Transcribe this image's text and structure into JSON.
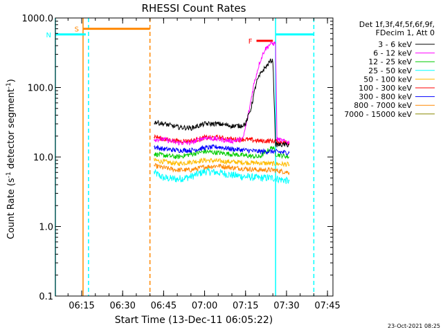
{
  "chart_data": {
    "type": "line",
    "title": "RHESSI Count Rates",
    "xlabel": "Start Time (13-Dec-11 06:05:22)",
    "ylabel_main": "Count Rate (s",
    "ylabel_sup1": "-1",
    "ylabel_mid": " detector segment",
    "ylabel_sup2": "-1",
    "ylabel_end": ")",
    "y_scale": "log",
    "ylim": [
      0.1,
      1000
    ],
    "xlim": [
      "06:05:22",
      "07:47:00"
    ],
    "x_ticks": [
      "06:15",
      "06:30",
      "06:45",
      "07:00",
      "07:15",
      "07:30",
      "07:45"
    ],
    "y_ticks": [
      "0.1",
      "1.0",
      "10.0",
      "100.0",
      "1000.0"
    ],
    "legend_header": [
      "Det 1f,3f,4f,5f,6f,9f,",
      "FDecim 1, Att 0"
    ],
    "legend_position": "right",
    "series": [
      {
        "name": "3 - 6 keV",
        "color": "#000000",
        "points": [
          [
            "06:41:30",
            32
          ],
          [
            "06:45",
            30
          ],
          [
            "06:50",
            27
          ],
          [
            "06:55",
            26
          ],
          [
            "07:00",
            30
          ],
          [
            "07:05",
            30
          ],
          [
            "07:10",
            28
          ],
          [
            "07:13",
            28
          ],
          [
            "07:15",
            30
          ],
          [
            "07:17",
            50
          ],
          [
            "07:19",
            120
          ],
          [
            "07:21",
            170
          ],
          [
            "07:23",
            210
          ],
          [
            "07:24",
            240
          ],
          [
            "07:25",
            245
          ],
          [
            "07:25:30",
            60
          ],
          [
            "07:26",
            15
          ],
          [
            "07:31",
            15
          ]
        ]
      },
      {
        "name": "6 - 12 keV",
        "color": "#ff00ff",
        "points": [
          [
            "06:41:30",
            18
          ],
          [
            "06:45",
            18
          ],
          [
            "06:50",
            16
          ],
          [
            "06:55",
            16
          ],
          [
            "07:00",
            19
          ],
          [
            "07:05",
            18
          ],
          [
            "07:10",
            17
          ],
          [
            "07:14",
            18
          ],
          [
            "07:16",
            40
          ],
          [
            "07:18",
            110
          ],
          [
            "07:20",
            220
          ],
          [
            "07:22",
            350
          ],
          [
            "07:24",
            420
          ],
          [
            "07:25",
            430
          ],
          [
            "07:26",
            430
          ],
          [
            "07:26:30",
            18
          ],
          [
            "07:31",
            16
          ]
        ]
      },
      {
        "name": "12 - 25 keV",
        "color": "#00cc00",
        "points": [
          [
            "06:41:30",
            11
          ],
          [
            "06:50",
            10
          ],
          [
            "07:00",
            12
          ],
          [
            "07:10",
            11
          ],
          [
            "07:20",
            10
          ],
          [
            "07:25",
            14
          ],
          [
            "07:26",
            11
          ],
          [
            "07:31",
            10
          ]
        ]
      },
      {
        "name": "25 - 50 keV",
        "color": "#00ffff",
        "points": [
          [
            "06:41:30",
            6
          ],
          [
            "06:45",
            5
          ],
          [
            "06:50",
            4.8
          ],
          [
            "06:55",
            5.2
          ],
          [
            "07:00",
            6.2
          ],
          [
            "07:05",
            6
          ],
          [
            "07:10",
            5.5
          ],
          [
            "07:15",
            5.2
          ],
          [
            "07:20",
            5
          ],
          [
            "07:25",
            5
          ],
          [
            "07:31",
            4.5
          ]
        ]
      },
      {
        "name": "50 - 100 keV",
        "color": "#ffbb00",
        "points": [
          [
            "06:41:30",
            9
          ],
          [
            "06:50",
            8
          ],
          [
            "07:00",
            9
          ],
          [
            "07:10",
            8.5
          ],
          [
            "07:20",
            8.2
          ],
          [
            "07:31",
            7.8
          ]
        ]
      },
      {
        "name": "100 - 300 keV",
        "color": "#ff0000",
        "points": [
          [
            "06:41:30",
            20
          ],
          [
            "06:45",
            18
          ],
          [
            "06:50",
            17
          ],
          [
            "06:55",
            17
          ],
          [
            "07:00",
            19
          ],
          [
            "07:05",
            19
          ],
          [
            "07:10",
            18
          ],
          [
            "07:15",
            18
          ],
          [
            "07:20",
            17
          ],
          [
            "07:25",
            17
          ],
          [
            "07:31",
            16
          ]
        ]
      },
      {
        "name": "300 - 800 keV",
        "color": "#0000ff",
        "points": [
          [
            "06:41:30",
            14
          ],
          [
            "06:45",
            13
          ],
          [
            "06:50",
            12.5
          ],
          [
            "06:55",
            12.5
          ],
          [
            "07:00",
            13.5
          ],
          [
            "07:05",
            14
          ],
          [
            "07:10",
            13
          ],
          [
            "07:15",
            12.5
          ],
          [
            "07:20",
            12
          ],
          [
            "07:25",
            12
          ],
          [
            "07:31",
            11.5
          ]
        ]
      },
      {
        "name": "800 - 7000 keV",
        "color": "#ff8800",
        "points": [
          [
            "06:41:30",
            7.5
          ],
          [
            "06:45",
            7
          ],
          [
            "06:50",
            6.5
          ],
          [
            "06:55",
            6.5
          ],
          [
            "07:00",
            7.2
          ],
          [
            "07:05",
            7.5
          ],
          [
            "07:10",
            7
          ],
          [
            "07:15",
            6.8
          ],
          [
            "07:20",
            6.5
          ],
          [
            "07:25",
            6.5
          ],
          [
            "07:31",
            6
          ]
        ]
      },
      {
        "name": "7000 - 15000 keV",
        "color": "#888800",
        "points": []
      }
    ],
    "intervals": [
      {
        "label": "S",
        "color": "#ff8800",
        "start": "06:15:30",
        "end": "06:40:00",
        "level": 700
      },
      {
        "label": "N",
        "color": "#00ffff",
        "start": "06:05:22",
        "end": "06:16:30",
        "level": 580
      },
      {
        "label": "F",
        "color": "#ff0000",
        "start": "07:19:00",
        "end": "07:25:00",
        "level": 470
      },
      {
        "label": "",
        "color": "#00ffff",
        "start": "07:26:00",
        "end": "07:40:00",
        "level": 580
      }
    ],
    "vlines": [
      {
        "time": "06:05:22",
        "color": "#00ffff",
        "style": "solid"
      },
      {
        "time": "06:15:30",
        "color": "#ff8800",
        "style": "solid"
      },
      {
        "time": "06:17:30",
        "color": "#00ffff",
        "style": "dashed"
      },
      {
        "time": "06:40:00",
        "color": "#ff8800",
        "style": "dashed"
      },
      {
        "time": "07:26:00",
        "color": "#00ffff",
        "style": "solid"
      },
      {
        "time": "07:40:00",
        "color": "#00ffff",
        "style": "dashed"
      }
    ],
    "footer_date": "23-Oct-2021 08:25"
  }
}
